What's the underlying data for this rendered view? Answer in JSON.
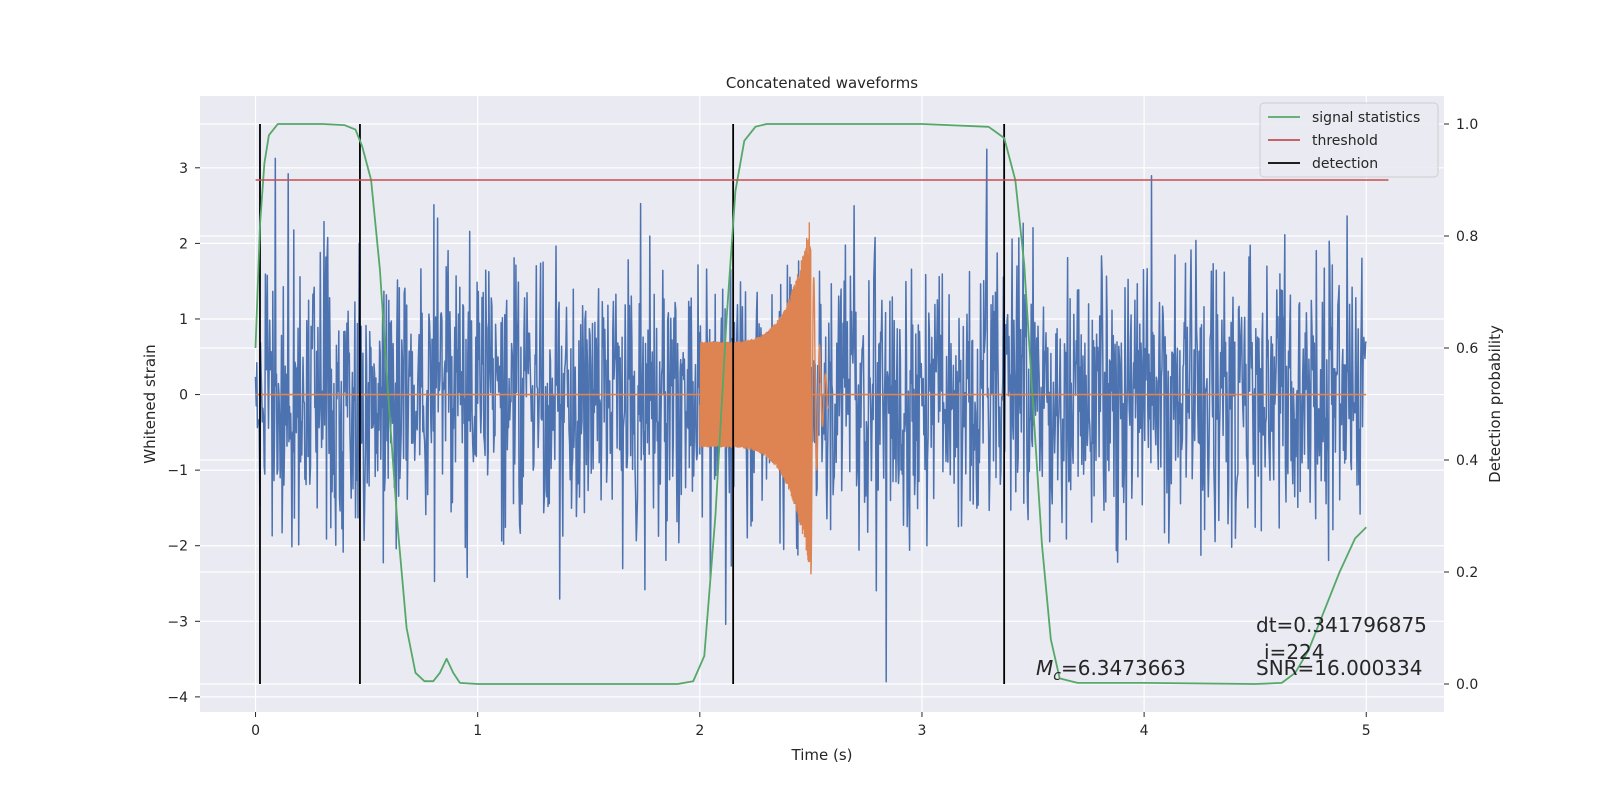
{
  "chart_data": {
    "type": "line",
    "title": "Concatenated waveforms",
    "xlabel": "Time (s)",
    "ylabel": "Whitened strain",
    "ylabel_right": "Detection probability",
    "xlim": [
      -0.25,
      5.35
    ],
    "ylim": [
      -4.2,
      3.95
    ],
    "ylim_right": [
      -0.05,
      1.05
    ],
    "xticks": [
      0,
      1,
      2,
      3,
      4,
      5
    ],
    "yticks": [
      -4,
      -3,
      -2,
      -1,
      0,
      1,
      2,
      3
    ],
    "yticks_right": [
      0.0,
      0.2,
      0.4,
      0.6,
      0.8,
      1.0
    ],
    "grid": true,
    "legend_position": "top-right",
    "colors": {
      "background": "#eaeaf2",
      "strain": "#4c72b0",
      "template": "#dd8452",
      "statistics": "#55a868",
      "threshold": "#c44e52",
      "detection": "#000000"
    },
    "legend": [
      {
        "label": "signal statistics",
        "color": "#55a868"
      },
      {
        "label": "threshold",
        "color": "#c44e52"
      },
      {
        "label": "detection",
        "color": "#000000"
      }
    ],
    "threshold": 0.9,
    "detections": [
      0.02,
      0.47,
      2.15,
      3.37
    ],
    "signal_statistics": {
      "x": [
        0.0,
        0.02,
        0.04,
        0.06,
        0.1,
        0.2,
        0.3,
        0.4,
        0.45,
        0.48,
        0.52,
        0.56,
        0.6,
        0.64,
        0.68,
        0.72,
        0.76,
        0.8,
        0.83,
        0.86,
        0.89,
        0.92,
        1.0,
        1.5,
        1.9,
        1.97,
        2.02,
        2.07,
        2.12,
        2.16,
        2.2,
        2.25,
        2.3,
        3.0,
        3.3,
        3.37,
        3.42,
        3.46,
        3.5,
        3.54,
        3.58,
        3.62,
        3.7,
        4.0,
        4.5,
        4.62,
        4.68,
        4.74,
        4.8,
        4.88,
        4.95,
        5.0
      ],
      "y": [
        0.6,
        0.82,
        0.93,
        0.98,
        1.0,
        1.0,
        1.0,
        0.998,
        0.99,
        0.96,
        0.9,
        0.74,
        0.5,
        0.28,
        0.1,
        0.02,
        0.005,
        0.005,
        0.02,
        0.045,
        0.02,
        0.002,
        0.0,
        0.0,
        0.0,
        0.005,
        0.05,
        0.3,
        0.65,
        0.88,
        0.97,
        0.995,
        1.0,
        1.0,
        0.995,
        0.975,
        0.9,
        0.75,
        0.5,
        0.25,
        0.08,
        0.01,
        0.002,
        0.002,
        0.0,
        0.002,
        0.02,
        0.06,
        0.12,
        0.2,
        0.26,
        0.28
      ]
    },
    "chirp": {
      "start": 2.0,
      "merger": 2.5,
      "end": 2.52,
      "start_amp": 0.7,
      "peak_amp": 2.4,
      "ringdown": 0.03
    },
    "noise": {
      "start": 0.0,
      "end": 5.0,
      "samples": 1800,
      "spread": 0.95,
      "min": -3.8,
      "max": 3.6
    }
  },
  "annotations": {
    "mc_symbol": "M",
    "mc_subscript": "c",
    "mc_value": "=6.3473663",
    "dt": "dt=0.341796875",
    "index": "i=224",
    "snr": "SNR=16.000334"
  }
}
